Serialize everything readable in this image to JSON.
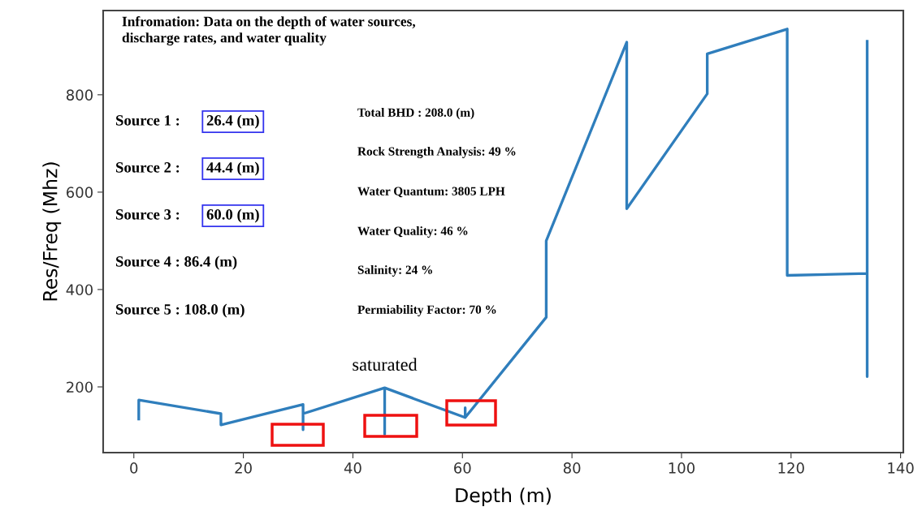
{
  "chart_data": {
    "type": "line",
    "title": "Infromation: Data on the depth of water sources,\ndischarge rates, and water quality",
    "xlabel": "Depth (m)",
    "ylabel": "Res/Freq (Mhz)",
    "series": [
      {
        "color": "#2f7ebc",
        "x": [
          0.9,
          0.9,
          15.9,
          15.9,
          30.9,
          30.9,
          30.9,
          45.8,
          45.8,
          45.8,
          60.5,
          60.5,
          60.5,
          75.3,
          75.3,
          90.0,
          90.0,
          104.7,
          104.7,
          119.3,
          119.3,
          133.9,
          133.9,
          133.9
        ],
        "values": [
          134,
          173,
          145,
          122,
          164,
          112,
          145,
          198,
          103,
          198,
          137,
          157,
          137,
          343,
          500,
          908,
          566,
          802,
          884,
          935,
          429,
          433,
          221,
          910
        ]
      }
    ],
    "annotations": [
      "Source 1 :",
      "26.4 (m)",
      "Source 2 :",
      "44.4 (m)",
      "Source 3 :",
      "60.0 (m)",
      "Source 4 : 86.4 (m)",
      "Source 5 : 108.0 (m)",
      "Total BHD : 208.0 (m)",
      "Rock Strength Analysis: 49 %",
      "Water Quantum: 3805 LPH",
      "Water Quality: 46 %",
      "Salinity: 24 %",
      "Permiability Factor: 70 %",
      {
        "text": "saturated",
        "x": 45.8,
        "y": 198
      }
    ],
    "xlim": [
      -5.6,
      140.5
    ],
    "ylim": [
      65,
      973
    ],
    "xticks": [
      0,
      20,
      40,
      60,
      80,
      100,
      120,
      140
    ],
    "yticks": [
      200,
      400,
      600,
      800
    ],
    "grid": false,
    "legend": false,
    "marker": "none",
    "line_style": "solid"
  }
}
